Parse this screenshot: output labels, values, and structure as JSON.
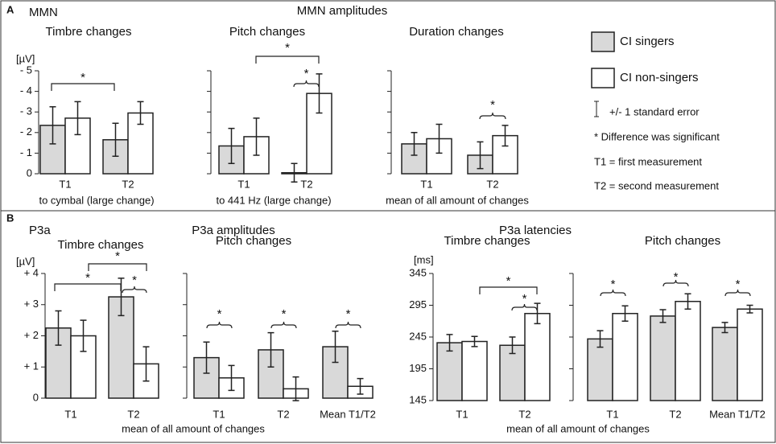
{
  "panels": [
    {
      "letter": "A",
      "label": "MMN",
      "title": "MMN amplitudes"
    },
    {
      "letter": "B",
      "label": "P3a",
      "title": "P3a amplitudes",
      "title2": "P3a latencies",
      "xlabel": "mean of all amount of changes",
      "xlabel2": "mean of all amount of changes"
    }
  ],
  "legend_notes": [
    "+/- 1 standard error",
    "* Difference was significant",
    "T1 = first measurement",
    "T2 = second measurement"
  ],
  "chart_data": [
    {
      "type": "bar",
      "title": "Timbre changes",
      "unit": "[µV]",
      "xlabel": "to cymbal (large change)",
      "categories": [
        "T1",
        "T2"
      ],
      "series": [
        {
          "name": "CI singers",
          "color": "#d9d9d9",
          "values": [
            -2.35,
            -1.65
          ],
          "errors": [
            0.9,
            0.8
          ]
        },
        {
          "name": "CI non-singers",
          "color": "#ffffff",
          "values": [
            -2.7,
            -2.95
          ],
          "errors": [
            0.8,
            0.55
          ]
        }
      ],
      "ylim": [
        0,
        -5
      ],
      "yticks": [
        {
          "value": -5,
          "label": "- 5"
        },
        {
          "value": -4,
          "label": "- 4"
        },
        {
          "value": -3,
          "label": "- 3"
        },
        {
          "value": -2,
          "label": "- 2"
        },
        {
          "value": -1,
          "label": "- 1"
        },
        0
      ],
      "annotations": [
        "*"
      ]
    },
    {
      "type": "bar",
      "title": "Pitch changes",
      "xlabel": "to 441 Hz (large change)",
      "categories": [
        "T1",
        "T2"
      ],
      "series": [
        {
          "color": "#d9d9d9",
          "values": [
            -1.35,
            -0.05
          ],
          "errors": [
            0.85,
            0.45
          ]
        },
        {
          "color": "#ffffff",
          "values": [
            -1.8,
            -3.9
          ],
          "errors": [
            0.9,
            0.95
          ]
        }
      ],
      "ylim": [
        0,
        -5
      ],
      "yticks": [
        -5,
        -4,
        -3,
        -2,
        -1,
        0
      ],
      "annotations": [
        "*",
        "*"
      ]
    },
    {
      "type": "bar",
      "title": "Duration  changes",
      "xlabel": "mean of all amount of changes",
      "categories": [
        "T1",
        "T2"
      ],
      "series": [
        {
          "color": "#d9d9d9",
          "values": [
            -1.45,
            -0.9
          ],
          "errors": [
            0.55,
            0.65
          ]
        },
        {
          "color": "#ffffff",
          "values": [
            -1.7,
            -1.85
          ],
          "errors": [
            0.7,
            0.5
          ]
        }
      ],
      "ylim": [
        0,
        -5
      ],
      "yticks": [
        -5,
        -4,
        -3,
        -2,
        -1,
        0
      ],
      "annotations": [
        "*"
      ]
    },
    {
      "type": "bar",
      "title": "Timbre changes",
      "unit": "[µV]",
      "categories": [
        "T1",
        "T2"
      ],
      "series": [
        {
          "color": "#d9d9d9",
          "values": [
            2.25,
            3.25
          ],
          "errors": [
            0.55,
            0.6
          ]
        },
        {
          "color": "#ffffff",
          "values": [
            2.0,
            1.1
          ],
          "errors": [
            0.5,
            0.55
          ]
        }
      ],
      "ylim": [
        0,
        4
      ],
      "yticks": [
        0,
        {
          "value": 1,
          "label": "+ 1"
        },
        {
          "value": 2,
          "label": "+ 2"
        },
        {
          "value": 3,
          "label": "+ 3"
        },
        {
          "value": 4,
          "label": "+ 4"
        }
      ],
      "annotations": [
        "*",
        "*",
        "*"
      ]
    },
    {
      "type": "bar",
      "title": "Pitch changes",
      "categories": [
        "T1",
        "T2",
        "Mean T1/T2"
      ],
      "series": [
        {
          "color": "#d9d9d9",
          "values": [
            1.3,
            1.55,
            1.65
          ],
          "errors": [
            0.5,
            0.55,
            0.5
          ]
        },
        {
          "color": "#ffffff",
          "values": [
            0.65,
            0.3,
            0.38
          ],
          "errors": [
            0.4,
            0.38,
            0.25
          ]
        }
      ],
      "ylim": [
        0,
        4
      ],
      "yticks": [
        0,
        1,
        2,
        3,
        4
      ],
      "annotations": [
        "*",
        "*",
        "*"
      ]
    },
    {
      "type": "bar",
      "title": "Timbre changes",
      "unit": "[ms]",
      "categories": [
        "T1",
        "T2"
      ],
      "series": [
        {
          "color": "#d9d9d9",
          "values": [
            236,
            232
          ],
          "errors": [
            13,
            13
          ]
        },
        {
          "color": "#ffffff",
          "values": [
            238,
            282
          ],
          "errors": [
            8,
            16
          ]
        }
      ],
      "ylim": [
        145,
        345
      ],
      "yticks": [
        145,
        195,
        245,
        295,
        345
      ],
      "annotations": [
        "*",
        "*"
      ]
    },
    {
      "type": "bar",
      "title": "Pitch changes",
      "categories": [
        "T1",
        "T2",
        "Mean T1/T2"
      ],
      "series": [
        {
          "color": "#d9d9d9",
          "values": [
            242,
            278,
            260
          ],
          "errors": [
            13,
            10,
            8
          ]
        },
        {
          "color": "#ffffff",
          "values": [
            282,
            301,
            289
          ],
          "errors": [
            12,
            12,
            6
          ]
        }
      ],
      "ylim": [
        145,
        345
      ],
      "yticks": [
        145,
        195,
        245,
        295,
        345
      ],
      "annotations": [
        "*",
        "*",
        "*"
      ]
    }
  ]
}
